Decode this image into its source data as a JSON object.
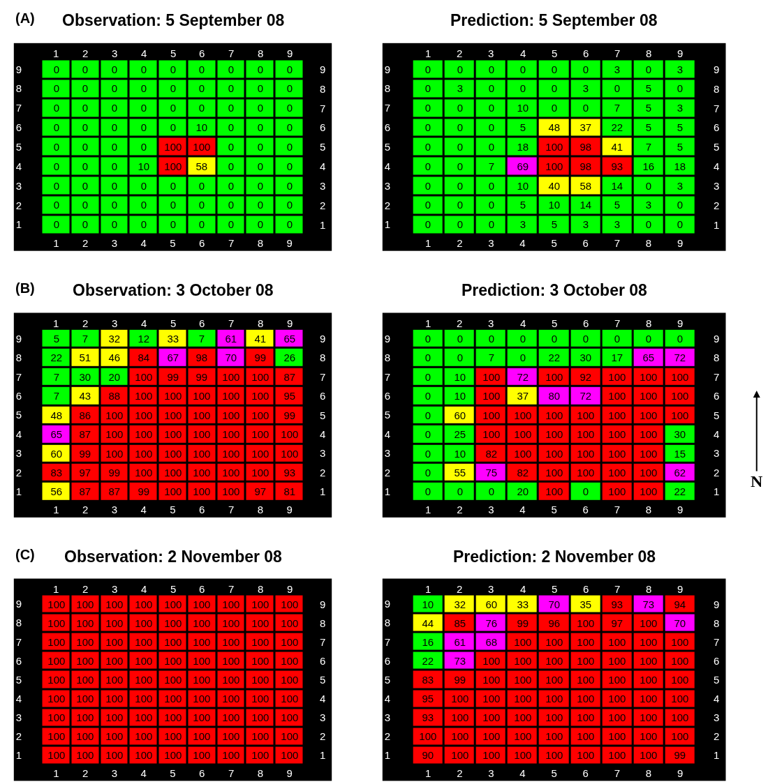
{
  "chart_data": [
    {
      "type": "heatmap",
      "title": "Observation: 5 September 08",
      "annotations": [
        "(A)"
      ],
      "data_labels": true,
      "categories": [
        "1",
        "2",
        "3",
        "4",
        "5",
        "6",
        "7",
        "8",
        "9"
      ],
      "y_categories": [
        "9",
        "8",
        "7",
        "6",
        "5",
        "4",
        "3",
        "2",
        "1"
      ],
      "y2_categories": [
        "9",
        "8",
        "7",
        "6",
        "5",
        "4",
        "3",
        "2",
        "1"
      ],
      "cells": [
        [
          0,
          0,
          0,
          0,
          0,
          0,
          0,
          0,
          0
        ],
        [
          0,
          0,
          0,
          0,
          0,
          0,
          0,
          0,
          0
        ],
        [
          0,
          0,
          0,
          0,
          0,
          0,
          0,
          0,
          0
        ],
        [
          0,
          0,
          0,
          0,
          0,
          10,
          0,
          0,
          0
        ],
        [
          0,
          0,
          0,
          0,
          100,
          100,
          0,
          0,
          0
        ],
        [
          0,
          0,
          0,
          10,
          100,
          58,
          0,
          0,
          0
        ],
        [
          0,
          0,
          0,
          0,
          0,
          0,
          0,
          0,
          0
        ],
        [
          0,
          0,
          0,
          0,
          0,
          0,
          0,
          0,
          0
        ],
        [
          0,
          0,
          0,
          0,
          0,
          0,
          0,
          0,
          0
        ]
      ],
      "colors": [
        [
          "#00ff00",
          "#00ff00",
          "#00ff00",
          "#00ff00",
          "#00ff00",
          "#00ff00",
          "#00ff00",
          "#00ff00",
          "#00ff00"
        ],
        [
          "#00ff00",
          "#00ff00",
          "#00ff00",
          "#00ff00",
          "#00ff00",
          "#00ff00",
          "#00ff00",
          "#00ff00",
          "#00ff00"
        ],
        [
          "#00ff00",
          "#00ff00",
          "#00ff00",
          "#00ff00",
          "#00ff00",
          "#00ff00",
          "#00ff00",
          "#00ff00",
          "#00ff00"
        ],
        [
          "#00ff00",
          "#00ff00",
          "#00ff00",
          "#00ff00",
          "#00ff00",
          "#00ff00",
          "#00ff00",
          "#00ff00",
          "#00ff00"
        ],
        [
          "#00ff00",
          "#00ff00",
          "#00ff00",
          "#00ff00",
          "#ff0000",
          "#ff0000",
          "#00ff00",
          "#00ff00",
          "#00ff00"
        ],
        [
          "#00ff00",
          "#00ff00",
          "#00ff00",
          "#00ff00",
          "#ff0000",
          "#ffff00",
          "#00ff00",
          "#00ff00",
          "#00ff00"
        ],
        [
          "#00ff00",
          "#00ff00",
          "#00ff00",
          "#00ff00",
          "#00ff00",
          "#00ff00",
          "#00ff00",
          "#00ff00",
          "#00ff00"
        ],
        [
          "#00ff00",
          "#00ff00",
          "#00ff00",
          "#00ff00",
          "#00ff00",
          "#00ff00",
          "#00ff00",
          "#00ff00",
          "#00ff00"
        ],
        [
          "#00ff00",
          "#00ff00",
          "#00ff00",
          "#00ff00",
          "#00ff00",
          "#00ff00",
          "#00ff00",
          "#00ff00",
          "#00ff00"
        ]
      ]
    },
    {
      "type": "heatmap",
      "title": "Prediction: 5 September 08",
      "data_labels": true,
      "categories": [
        "1",
        "2",
        "3",
        "4",
        "5",
        "6",
        "7",
        "8",
        "9"
      ],
      "y_categories": [
        "9",
        "8",
        "7",
        "6",
        "5",
        "4",
        "3",
        "2",
        "1"
      ],
      "y2_categories": [
        "9",
        "8",
        "7",
        "6",
        "5",
        "4",
        "3",
        "2",
        "1"
      ],
      "cells": [
        [
          0,
          0,
          0,
          0,
          0,
          0,
          3,
          0,
          3
        ],
        [
          0,
          3,
          0,
          0,
          0,
          3,
          0,
          5,
          0
        ],
        [
          0,
          0,
          0,
          10,
          0,
          0,
          7,
          5,
          3
        ],
        [
          0,
          0,
          0,
          5,
          48,
          37,
          22,
          5,
          5
        ],
        [
          0,
          0,
          0,
          18,
          100,
          98,
          41,
          7,
          5
        ],
        [
          0,
          0,
          7,
          69,
          100,
          98,
          93,
          16,
          18
        ],
        [
          0,
          0,
          0,
          10,
          40,
          58,
          14,
          0,
          3
        ],
        [
          0,
          0,
          0,
          5,
          10,
          14,
          5,
          3,
          0
        ],
        [
          0,
          0,
          0,
          3,
          5,
          3,
          3,
          0,
          0
        ]
      ],
      "colors": [
        [
          "#00ff00",
          "#00ff00",
          "#00ff00",
          "#00ff00",
          "#00ff00",
          "#00ff00",
          "#00ff00",
          "#00ff00",
          "#00ff00"
        ],
        [
          "#00ff00",
          "#00ff00",
          "#00ff00",
          "#00ff00",
          "#00ff00",
          "#00ff00",
          "#00ff00",
          "#00ff00",
          "#00ff00"
        ],
        [
          "#00ff00",
          "#00ff00",
          "#00ff00",
          "#00ff00",
          "#00ff00",
          "#00ff00",
          "#00ff00",
          "#00ff00",
          "#00ff00"
        ],
        [
          "#00ff00",
          "#00ff00",
          "#00ff00",
          "#00ff00",
          "#ffff00",
          "#ffff00",
          "#00ff00",
          "#00ff00",
          "#00ff00"
        ],
        [
          "#00ff00",
          "#00ff00",
          "#00ff00",
          "#00ff00",
          "#ff0000",
          "#ff0000",
          "#ffff00",
          "#00ff00",
          "#00ff00"
        ],
        [
          "#00ff00",
          "#00ff00",
          "#00ff00",
          "#ff00ff",
          "#ff0000",
          "#ff0000",
          "#ff0000",
          "#00ff00",
          "#00ff00"
        ],
        [
          "#00ff00",
          "#00ff00",
          "#00ff00",
          "#00ff00",
          "#ffff00",
          "#ffff00",
          "#00ff00",
          "#00ff00",
          "#00ff00"
        ],
        [
          "#00ff00",
          "#00ff00",
          "#00ff00",
          "#00ff00",
          "#00ff00",
          "#00ff00",
          "#00ff00",
          "#00ff00",
          "#00ff00"
        ],
        [
          "#00ff00",
          "#00ff00",
          "#00ff00",
          "#00ff00",
          "#00ff00",
          "#00ff00",
          "#00ff00",
          "#00ff00",
          "#00ff00"
        ]
      ]
    },
    {
      "type": "heatmap",
      "title": "Observation: 3 October 08",
      "annotations": [
        "(B)"
      ],
      "data_labels": true,
      "categories": [
        "1",
        "2",
        "3",
        "4",
        "5",
        "6",
        "7",
        "8",
        "9"
      ],
      "y_categories": [
        "9",
        "8",
        "7",
        "6",
        "5",
        "4",
        "3",
        "2",
        "1"
      ],
      "y2_categories": [
        "9",
        "8",
        "7",
        "6",
        "5",
        "4",
        "3",
        "2",
        "1"
      ],
      "cells": [
        [
          5,
          7,
          32,
          12,
          33,
          7,
          61,
          41,
          65
        ],
        [
          22,
          51,
          46,
          84,
          67,
          98,
          70,
          99,
          26
        ],
        [
          7,
          30,
          20,
          100,
          99,
          99,
          100,
          100,
          87
        ],
        [
          7,
          43,
          88,
          100,
          100,
          100,
          100,
          100,
          95
        ],
        [
          48,
          86,
          100,
          100,
          100,
          100,
          100,
          100,
          99
        ],
        [
          65,
          87,
          100,
          100,
          100,
          100,
          100,
          100,
          100
        ],
        [
          60,
          99,
          100,
          100,
          100,
          100,
          100,
          100,
          100
        ],
        [
          83,
          97,
          99,
          100,
          100,
          100,
          100,
          100,
          93
        ],
        [
          56,
          87,
          87,
          99,
          100,
          100,
          100,
          97,
          81
        ]
      ],
      "colors": [
        [
          "#00ff00",
          "#00ff00",
          "#ffff00",
          "#00ff00",
          "#ffff00",
          "#00ff00",
          "#ff00ff",
          "#ffff00",
          "#ff00ff"
        ],
        [
          "#00ff00",
          "#ffff00",
          "#ffff00",
          "#ff0000",
          "#ff00ff",
          "#ff0000",
          "#ff00ff",
          "#ff0000",
          "#00ff00"
        ],
        [
          "#00ff00",
          "#00ff00",
          "#00ff00",
          "#ff0000",
          "#ff0000",
          "#ff0000",
          "#ff0000",
          "#ff0000",
          "#ff0000"
        ],
        [
          "#00ff00",
          "#ffff00",
          "#ff0000",
          "#ff0000",
          "#ff0000",
          "#ff0000",
          "#ff0000",
          "#ff0000",
          "#ff0000"
        ],
        [
          "#ffff00",
          "#ff0000",
          "#ff0000",
          "#ff0000",
          "#ff0000",
          "#ff0000",
          "#ff0000",
          "#ff0000",
          "#ff0000"
        ],
        [
          "#ff00ff",
          "#ff0000",
          "#ff0000",
          "#ff0000",
          "#ff0000",
          "#ff0000",
          "#ff0000",
          "#ff0000",
          "#ff0000"
        ],
        [
          "#ffff00",
          "#ff0000",
          "#ff0000",
          "#ff0000",
          "#ff0000",
          "#ff0000",
          "#ff0000",
          "#ff0000",
          "#ff0000"
        ],
        [
          "#ff0000",
          "#ff0000",
          "#ff0000",
          "#ff0000",
          "#ff0000",
          "#ff0000",
          "#ff0000",
          "#ff0000",
          "#ff0000"
        ],
        [
          "#ffff00",
          "#ff0000",
          "#ff0000",
          "#ff0000",
          "#ff0000",
          "#ff0000",
          "#ff0000",
          "#ff0000",
          "#ff0000"
        ]
      ]
    },
    {
      "type": "heatmap",
      "title": "Prediction: 3 October 08",
      "annotations": [
        "N"
      ],
      "data_labels": true,
      "categories": [
        "1",
        "2",
        "3",
        "4",
        "5",
        "6",
        "7",
        "8",
        "9"
      ],
      "y_categories": [
        "9",
        "8",
        "7",
        "6",
        "5",
        "4",
        "3",
        "2",
        "1"
      ],
      "y2_categories": [
        "9",
        "8",
        "7",
        "6",
        "5",
        "4",
        "3",
        "2",
        "1"
      ],
      "cells": [
        [
          0,
          0,
          0,
          0,
          0,
          0,
          0,
          0,
          0
        ],
        [
          0,
          0,
          7,
          0,
          22,
          30,
          17,
          65,
          72
        ],
        [
          0,
          10,
          100,
          72,
          100,
          92,
          100,
          100,
          100
        ],
        [
          0,
          10,
          100,
          37,
          80,
          72,
          100,
          100,
          100
        ],
        [
          0,
          60,
          100,
          100,
          100,
          100,
          100,
          100,
          100
        ],
        [
          0,
          25,
          100,
          100,
          100,
          100,
          100,
          100,
          30
        ],
        [
          0,
          10,
          82,
          100,
          100,
          100,
          100,
          100,
          15
        ],
        [
          0,
          55,
          75,
          82,
          100,
          100,
          100,
          100,
          62
        ],
        [
          0,
          0,
          0,
          20,
          100,
          0,
          100,
          100,
          22
        ]
      ],
      "colors": [
        [
          "#00ff00",
          "#00ff00",
          "#00ff00",
          "#00ff00",
          "#00ff00",
          "#00ff00",
          "#00ff00",
          "#00ff00",
          "#00ff00"
        ],
        [
          "#00ff00",
          "#00ff00",
          "#00ff00",
          "#00ff00",
          "#00ff00",
          "#00ff00",
          "#00ff00",
          "#ff00ff",
          "#ff00ff"
        ],
        [
          "#00ff00",
          "#00ff00",
          "#ff0000",
          "#ff00ff",
          "#ff0000",
          "#ff0000",
          "#ff0000",
          "#ff0000",
          "#ff0000"
        ],
        [
          "#00ff00",
          "#00ff00",
          "#ff0000",
          "#ffff00",
          "#ff00ff",
          "#ff00ff",
          "#ff0000",
          "#ff0000",
          "#ff0000"
        ],
        [
          "#00ff00",
          "#ffff00",
          "#ff0000",
          "#ff0000",
          "#ff0000",
          "#ff0000",
          "#ff0000",
          "#ff0000",
          "#ff0000"
        ],
        [
          "#00ff00",
          "#00ff00",
          "#ff0000",
          "#ff0000",
          "#ff0000",
          "#ff0000",
          "#ff0000",
          "#ff0000",
          "#00ff00"
        ],
        [
          "#00ff00",
          "#00ff00",
          "#ff0000",
          "#ff0000",
          "#ff0000",
          "#ff0000",
          "#ff0000",
          "#ff0000",
          "#00ff00"
        ],
        [
          "#00ff00",
          "#ffff00",
          "#ff00ff",
          "#ff0000",
          "#ff0000",
          "#ff0000",
          "#ff0000",
          "#ff0000",
          "#ff00ff"
        ],
        [
          "#00ff00",
          "#00ff00",
          "#00ff00",
          "#00ff00",
          "#ff0000",
          "#00ff00",
          "#ff0000",
          "#ff0000",
          "#00ff00"
        ]
      ]
    },
    {
      "type": "heatmap",
      "title": "Observation: 2 November 08",
      "annotations": [
        "(C)"
      ],
      "data_labels": true,
      "categories": [
        "1",
        "2",
        "3",
        "4",
        "5",
        "6",
        "7",
        "8",
        "9"
      ],
      "y_categories": [
        "9",
        "8",
        "7",
        "6",
        "5",
        "4",
        "3",
        "2",
        "1"
      ],
      "y2_categories": [
        "9",
        "8",
        "7",
        "6",
        "5",
        "4",
        "3",
        "2",
        "1"
      ],
      "cells": [
        [
          100,
          100,
          100,
          100,
          100,
          100,
          100,
          100,
          100
        ],
        [
          100,
          100,
          100,
          100,
          100,
          100,
          100,
          100,
          100
        ],
        [
          100,
          100,
          100,
          100,
          100,
          100,
          100,
          100,
          100
        ],
        [
          100,
          100,
          100,
          100,
          100,
          100,
          100,
          100,
          100
        ],
        [
          100,
          100,
          100,
          100,
          100,
          100,
          100,
          100,
          100
        ],
        [
          100,
          100,
          100,
          100,
          100,
          100,
          100,
          100,
          100
        ],
        [
          100,
          100,
          100,
          100,
          100,
          100,
          100,
          100,
          100
        ],
        [
          100,
          100,
          100,
          100,
          100,
          100,
          100,
          100,
          100
        ],
        [
          100,
          100,
          100,
          100,
          100,
          100,
          100,
          100,
          100
        ]
      ],
      "colors": [
        [
          "#ff0000",
          "#ff0000",
          "#ff0000",
          "#ff0000",
          "#ff0000",
          "#ff0000",
          "#ff0000",
          "#ff0000",
          "#ff0000"
        ],
        [
          "#ff0000",
          "#ff0000",
          "#ff0000",
          "#ff0000",
          "#ff0000",
          "#ff0000",
          "#ff0000",
          "#ff0000",
          "#ff0000"
        ],
        [
          "#ff0000",
          "#ff0000",
          "#ff0000",
          "#ff0000",
          "#ff0000",
          "#ff0000",
          "#ff0000",
          "#ff0000",
          "#ff0000"
        ],
        [
          "#ff0000",
          "#ff0000",
          "#ff0000",
          "#ff0000",
          "#ff0000",
          "#ff0000",
          "#ff0000",
          "#ff0000",
          "#ff0000"
        ],
        [
          "#ff0000",
          "#ff0000",
          "#ff0000",
          "#ff0000",
          "#ff0000",
          "#ff0000",
          "#ff0000",
          "#ff0000",
          "#ff0000"
        ],
        [
          "#ff0000",
          "#ff0000",
          "#ff0000",
          "#ff0000",
          "#ff0000",
          "#ff0000",
          "#ff0000",
          "#ff0000",
          "#ff0000"
        ],
        [
          "#ff0000",
          "#ff0000",
          "#ff0000",
          "#ff0000",
          "#ff0000",
          "#ff0000",
          "#ff0000",
          "#ff0000",
          "#ff0000"
        ],
        [
          "#ff0000",
          "#ff0000",
          "#ff0000",
          "#ff0000",
          "#ff0000",
          "#ff0000",
          "#ff0000",
          "#ff0000",
          "#ff0000"
        ],
        [
          "#ff0000",
          "#ff0000",
          "#ff0000",
          "#ff0000",
          "#ff0000",
          "#ff0000",
          "#ff0000",
          "#ff0000",
          "#ff0000"
        ]
      ]
    },
    {
      "type": "heatmap",
      "title": "Prediction: 2 November 08",
      "data_labels": true,
      "categories": [
        "1",
        "2",
        "3",
        "4",
        "5",
        "6",
        "7",
        "8",
        "9"
      ],
      "y_categories": [
        "9",
        "8",
        "7",
        "6",
        "5",
        "4",
        "3",
        "2",
        "1"
      ],
      "y2_categories": [
        "9",
        "8",
        "7",
        "6",
        "5",
        "4",
        "3",
        "2",
        "1"
      ],
      "cells": [
        [
          10,
          32,
          60,
          33,
          70,
          35,
          93,
          73,
          94
        ],
        [
          44,
          85,
          76,
          99,
          96,
          100,
          97,
          100,
          70
        ],
        [
          16,
          61,
          68,
          100,
          100,
          100,
          100,
          100,
          100
        ],
        [
          22,
          73,
          100,
          100,
          100,
          100,
          100,
          100,
          100
        ],
        [
          83,
          99,
          100,
          100,
          100,
          100,
          100,
          100,
          100
        ],
        [
          95,
          100,
          100,
          100,
          100,
          100,
          100,
          100,
          100
        ],
        [
          93,
          100,
          100,
          100,
          100,
          100,
          100,
          100,
          100
        ],
        [
          100,
          100,
          100,
          100,
          100,
          100,
          100,
          100,
          100
        ],
        [
          90,
          100,
          100,
          100,
          100,
          100,
          100,
          100,
          99
        ]
      ],
      "colors": [
        [
          "#00ff00",
          "#ffff00",
          "#ffff00",
          "#ffff00",
          "#ff00ff",
          "#ffff00",
          "#ff0000",
          "#ff00ff",
          "#ff0000"
        ],
        [
          "#ffff00",
          "#ff0000",
          "#ff00ff",
          "#ff0000",
          "#ff0000",
          "#ff0000",
          "#ff0000",
          "#ff0000",
          "#ff00ff"
        ],
        [
          "#00ff00",
          "#ff00ff",
          "#ff00ff",
          "#ff0000",
          "#ff0000",
          "#ff0000",
          "#ff0000",
          "#ff0000",
          "#ff0000"
        ],
        [
          "#00ff00",
          "#ff00ff",
          "#ff0000",
          "#ff0000",
          "#ff0000",
          "#ff0000",
          "#ff0000",
          "#ff0000",
          "#ff0000"
        ],
        [
          "#ff0000",
          "#ff0000",
          "#ff0000",
          "#ff0000",
          "#ff0000",
          "#ff0000",
          "#ff0000",
          "#ff0000",
          "#ff0000"
        ],
        [
          "#ff0000",
          "#ff0000",
          "#ff0000",
          "#ff0000",
          "#ff0000",
          "#ff0000",
          "#ff0000",
          "#ff0000",
          "#ff0000"
        ],
        [
          "#ff0000",
          "#ff0000",
          "#ff0000",
          "#ff0000",
          "#ff0000",
          "#ff0000",
          "#ff0000",
          "#ff0000",
          "#ff0000"
        ],
        [
          "#ff0000",
          "#ff0000",
          "#ff0000",
          "#ff0000",
          "#ff0000",
          "#ff0000",
          "#ff0000",
          "#ff0000",
          "#ff0000"
        ],
        [
          "#ff0000",
          "#ff0000",
          "#ff0000",
          "#ff0000",
          "#ff0000",
          "#ff0000",
          "#ff0000",
          "#ff0000",
          "#ff0000"
        ]
      ]
    }
  ]
}
